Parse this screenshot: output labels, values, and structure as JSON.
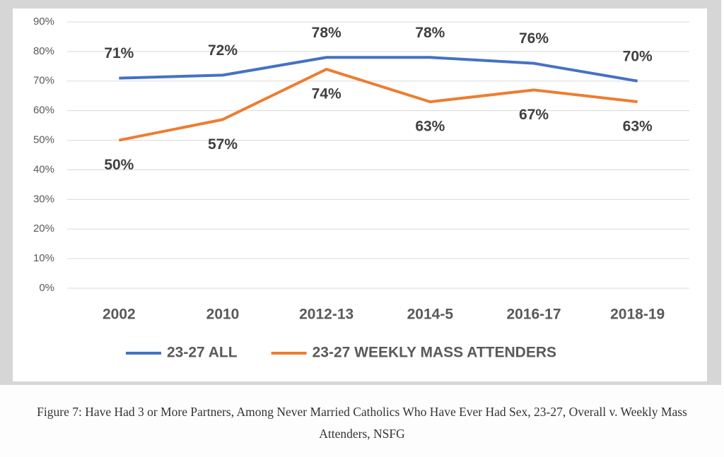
{
  "chart_data": {
    "type": "line",
    "categories": [
      "2002",
      "2010",
      "2012-13",
      "2014-5",
      "2016-17",
      "2018-19"
    ],
    "series": [
      {
        "name": "23-27 ALL",
        "color": "#4472c4",
        "values": [
          71,
          72,
          78,
          78,
          76,
          70
        ],
        "value_labels": [
          "71%",
          "72%",
          "78%",
          "78%",
          "76%",
          "70%"
        ]
      },
      {
        "name": "23-27 WEEKLY MASS ATTENDERS",
        "color": "#ed7d31",
        "values": [
          50,
          57,
          74,
          63,
          67,
          63
        ],
        "value_labels": [
          "50%",
          "57%",
          "74%",
          "63%",
          "67%",
          "63%"
        ]
      }
    ],
    "ylim": [
      0,
      90
    ],
    "yticks": [
      {
        "value": 0,
        "label": "0%"
      },
      {
        "value": 10,
        "label": "10%"
      },
      {
        "value": 20,
        "label": "20%"
      },
      {
        "value": 30,
        "label": "30%"
      },
      {
        "value": 40,
        "label": "40%"
      },
      {
        "value": 50,
        "label": "50%"
      },
      {
        "value": 60,
        "label": "60%"
      },
      {
        "value": 70,
        "label": "70%"
      },
      {
        "value": 80,
        "label": "80%"
      },
      {
        "value": 90,
        "label": "90%"
      }
    ],
    "grid": true,
    "legend": "bottom"
  },
  "caption": "Figure 7: Have Had 3 or More Partners, Among Never Married Catholics Who Have Ever Had Sex, 23-27, Overall v. Weekly Mass Attenders, NSFG"
}
